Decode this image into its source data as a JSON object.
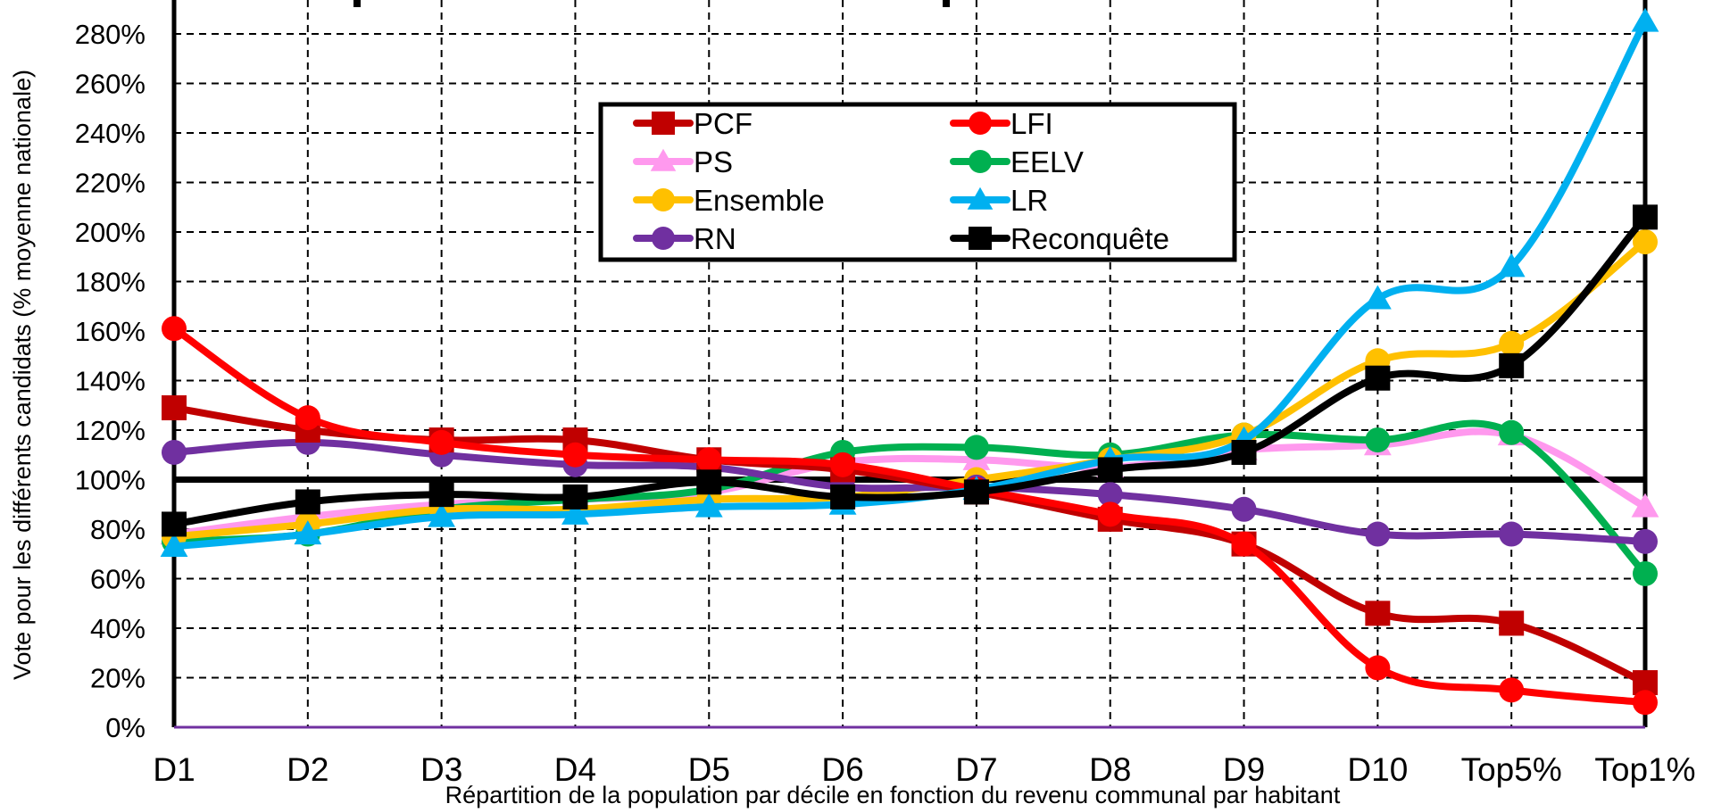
{
  "chart_data": {
    "type": "line",
    "title": "",
    "xlabel": "Répartition de la population par décile en fonction du revenu communal par habitant",
    "ylabel": "Vote pour les différents candidats (% moyenne nationale)",
    "categories": [
      "D1",
      "D2",
      "D3",
      "D4",
      "D5",
      "D6",
      "D7",
      "D8",
      "D9",
      "D10",
      "Top5%",
      "Top1%"
    ],
    "ylim": [
      0,
      290
    ],
    "yticks": [
      0,
      20,
      40,
      60,
      80,
      100,
      120,
      140,
      160,
      180,
      200,
      220,
      240,
      260,
      280
    ],
    "ytick_labels": [
      "0%",
      "20%",
      "40%",
      "60%",
      "80%",
      "100%",
      "120%",
      "140%",
      "160%",
      "180%",
      "200%",
      "220%",
      "240%",
      "260%",
      "280%"
    ],
    "reference_line": 100,
    "grid": true,
    "legend_position": "top-center",
    "series": [
      {
        "name": "PCF",
        "color": "#c00000",
        "marker": "square",
        "values": [
          129,
          120,
          116,
          116,
          108,
          104,
          95,
          84,
          74,
          46,
          42,
          18
        ]
      },
      {
        "name": "LFI",
        "color": "#ff0000",
        "marker": "circle",
        "values": [
          161,
          125,
          115,
          110,
          108,
          106,
          96,
          86,
          74,
          24,
          15,
          10
        ]
      },
      {
        "name": "PS",
        "color": "#ff99ee",
        "marker": "triangle",
        "values": [
          78,
          85,
          90,
          92,
          95,
          107,
          108,
          105,
          112,
          114,
          118,
          89
        ]
      },
      {
        "name": "EELV",
        "color": "#00b050",
        "marker": "circle",
        "values": [
          75,
          78,
          88,
          92,
          96,
          111,
          113,
          110,
          118,
          116,
          119,
          62
        ]
      },
      {
        "name": "Ensemble",
        "color": "#ffc000",
        "marker": "circle",
        "values": [
          77,
          82,
          88,
          88,
          92,
          93,
          100,
          108,
          118,
          148,
          155,
          196
        ]
      },
      {
        "name": "LR",
        "color": "#00b0f0",
        "marker": "triangle",
        "values": [
          73,
          78,
          85,
          86,
          89,
          90,
          96,
          108,
          116,
          173,
          186,
          285
        ]
      },
      {
        "name": "RN",
        "color": "#7030a0",
        "marker": "circle",
        "values": [
          111,
          115,
          110,
          106,
          105,
          97,
          97,
          94,
          88,
          78,
          78,
          75
        ]
      },
      {
        "name": "Reconquête",
        "color": "#000000",
        "marker": "square",
        "values": [
          82,
          91,
          94,
          93,
          99,
          93,
          95,
          104,
          111,
          141,
          146,
          206
        ]
      }
    ]
  }
}
